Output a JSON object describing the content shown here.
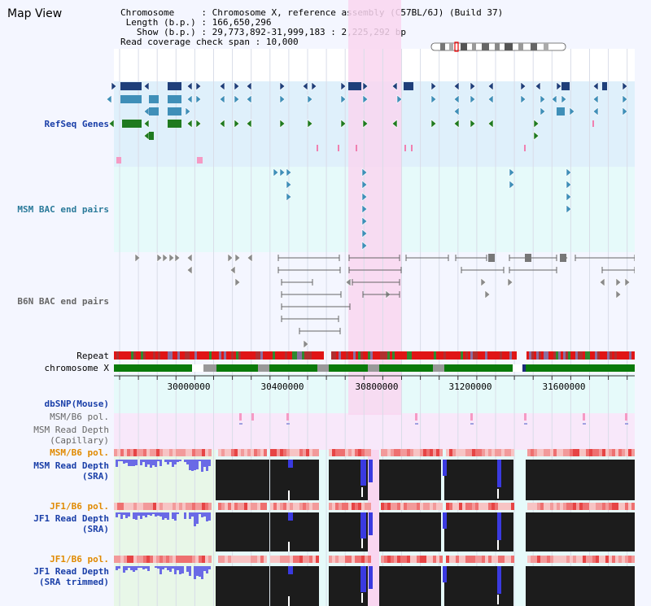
{
  "title": "Map View",
  "info": {
    "chromosome_label": "Chromosome",
    "chromosome_value": "Chromosome X, reference assembly (C57BL/6J) (Build 37)",
    "length_label": "Length (b.p.)",
    "length_value": "166,650,296",
    "show_label": "Show (b.p.)",
    "show_value": "29,773,892-31,999,183 : 2,225,292 bp",
    "span_label": "Read coverage check span",
    "span_value": "10,000"
  },
  "tracks": {
    "refseq": "RefSeq Genes",
    "msm_bac": "MSM BAC end pairs",
    "b6n_bac": "B6N BAC end pairs",
    "repeat": "Repeat",
    "chromosome": "chromosome X",
    "dbsnp": "dbSNP(Mouse)",
    "msm_b6_pol_1": "MSM/B6 pol.",
    "msm_read_depth_cap_1": "MSM Read Depth",
    "msm_read_depth_cap_2": "(Capillary)",
    "msm_b6_pol_2": "MSM/B6 pol.",
    "msm_read_depth_sra_1": "MSM Read Depth",
    "msm_read_depth_sra_2": "(SRA)",
    "jf1_b6_pol_1": "JF1/B6 pol.",
    "jf1_read_depth_sra_1": "JF1 Read Depth",
    "jf1_read_depth_sra_2": "(SRA)",
    "jf1_b6_pol_2": "JF1/B6 pol.",
    "jf1_read_depth_trim_1": "JF1 Read Depth",
    "jf1_read_depth_trim_2": "(SRA trimmed)"
  },
  "axis": {
    "ticks": [
      "30000000",
      "30400000",
      "30800000",
      "31200000",
      "31600000"
    ]
  },
  "colors": {
    "highlight": "#f9d6f0",
    "refseq_bg": "#dff0fb",
    "msm_bg": "#e6fafa",
    "dark_blue": "#1f3f7a",
    "mid_blue": "#3f8fb8",
    "dark_green": "#1f7a1f",
    "track_black": "#1c1c1c"
  }
}
